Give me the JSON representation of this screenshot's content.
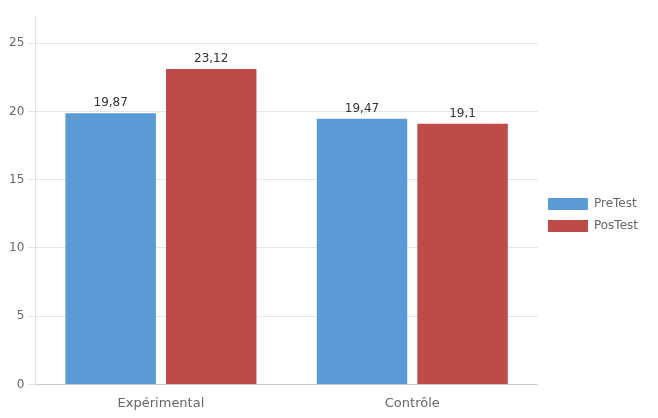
{
  "chart_data": {
    "type": "bar",
    "categories": [
      "Expérimental",
      "Contrôle"
    ],
    "series": [
      {
        "name": "PreTest",
        "color": "#5B9BD5",
        "values": [
          19.87,
          19.47
        ],
        "value_labels": [
          "19,87",
          "19,47"
        ]
      },
      {
        "name": "PosTest",
        "color": "#BE4B48",
        "values": [
          23.12,
          19.1
        ],
        "value_labels": [
          "23,12",
          "19,1"
        ]
      }
    ],
    "ylim": [
      0,
      27
    ],
    "yticks": [
      0,
      5,
      10,
      15,
      20,
      25
    ],
    "grid": true,
    "data_labels": true,
    "legend": "right"
  }
}
